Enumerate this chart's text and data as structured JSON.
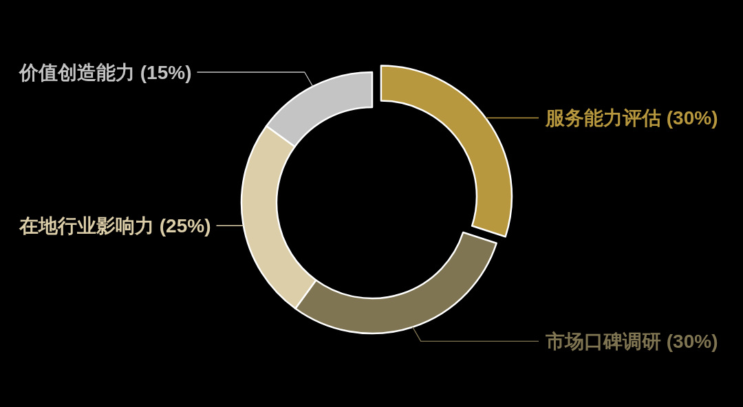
{
  "chart_data": {
    "type": "donut",
    "categories": [
      "服务能力评估",
      "市场口碑调研",
      "在地行业影响力",
      "价值创造能力"
    ],
    "values": [
      30,
      30,
      25,
      15
    ],
    "colors": [
      "#b8983e",
      "#807552",
      "#dbcea9",
      "#c4c4c4"
    ],
    "value_labels": [
      "(30%)",
      "(30%)",
      "(25%)",
      "(15%)"
    ]
  }
}
